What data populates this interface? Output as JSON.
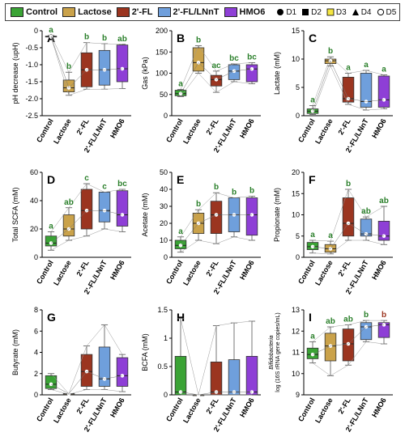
{
  "legend": {
    "groups": [
      {
        "label": "Control",
        "color": "#3aa335"
      },
      {
        "label": "Lactose",
        "color": "#caa24a"
      },
      {
        "label": "2'-FL",
        "color": "#9b3520"
      },
      {
        "label": "2'-FL/LNnT",
        "color": "#6f9fdc"
      },
      {
        "label": "HMO6",
        "color": "#8e3fd6"
      }
    ],
    "donors": [
      {
        "label": "D1",
        "marker": "circle-filled"
      },
      {
        "label": "D2",
        "marker": "square-filled"
      },
      {
        "label": "D3",
        "marker": "square-yellow"
      },
      {
        "label": "D4",
        "marker": "triangle"
      },
      {
        "label": "D5",
        "marker": "circle-open"
      }
    ]
  },
  "chart_data": [
    {
      "type": "box",
      "panel": "A",
      "title": "",
      "xlabel": "",
      "ylabel": "pH decrease (upH)",
      "ylim": [
        -2.5,
        0
      ],
      "yticks": [
        0,
        -0.5,
        -1.0,
        -1.5,
        -2.0,
        -2.5
      ],
      "categories": [
        "Control",
        "Lactose",
        "2'-FL",
        "2'-FL/LNnT",
        "HMO6"
      ],
      "boxes": [
        {
          "min": -0.18,
          "q1": -0.18,
          "median": -0.17,
          "q3": -0.16,
          "max": -0.14
        },
        {
          "min": -1.9,
          "q1": -1.8,
          "median": -1.68,
          "q3": -1.45,
          "max": -1.22
        },
        {
          "min": -1.72,
          "q1": -1.65,
          "median": -1.15,
          "q3": -0.65,
          "max": -0.35
        },
        {
          "min": -1.72,
          "q1": -1.6,
          "median": -1.15,
          "q3": -0.58,
          "max": -0.38
        },
        {
          "min": -1.7,
          "q1": -1.5,
          "median": -1.12,
          "q3": -0.42,
          "max": -0.4
        }
      ],
      "letters": [
        "a",
        "b",
        "b",
        "b",
        "ab"
      ]
    },
    {
      "type": "box",
      "panel": "B",
      "title": "",
      "xlabel": "",
      "ylabel": "Gas (kPa)",
      "ylim": [
        0,
        200
      ],
      "yticks": [
        0,
        50,
        100,
        150,
        200
      ],
      "categories": [
        "Control",
        "Lactose",
        "2'-FL",
        "2'-FL/LNnT",
        "HMO6"
      ],
      "boxes": [
        {
          "min": 45,
          "q1": 47,
          "median": 52,
          "q3": 60,
          "max": 62
        },
        {
          "min": 100,
          "q1": 105,
          "median": 125,
          "q3": 160,
          "max": 165
        },
        {
          "min": 55,
          "q1": 70,
          "median": 85,
          "q3": 95,
          "max": 105
        },
        {
          "min": 80,
          "q1": 85,
          "median": 105,
          "q3": 120,
          "max": 122
        },
        {
          "min": 75,
          "q1": 80,
          "median": 110,
          "q3": 120,
          "max": 125
        }
      ],
      "letters": [
        "a",
        "b",
        "ac",
        "bc",
        "bc"
      ]
    },
    {
      "type": "box",
      "panel": "C",
      "title": "",
      "xlabel": "",
      "ylabel": "Lactate (mM)",
      "ylim": [
        0,
        15
      ],
      "yticks": [
        0,
        5,
        10,
        15
      ],
      "categories": [
        "Control",
        "Lactose",
        "2'-FL",
        "2'-FL/LNnT",
        "HMO6"
      ],
      "boxes": [
        {
          "min": 0.2,
          "q1": 0.4,
          "median": 0.8,
          "q3": 1.2,
          "max": 1.8
        },
        {
          "min": 8.8,
          "q1": 9.2,
          "median": 9.7,
          "q3": 10.0,
          "max": 10.4
        },
        {
          "min": 2.0,
          "q1": 2.4,
          "median": 3.0,
          "q3": 6.8,
          "max": 7.5
        },
        {
          "min": 1.0,
          "q1": 1.5,
          "median": 2.5,
          "q3": 7.5,
          "max": 8.0
        },
        {
          "min": 1.2,
          "q1": 1.5,
          "median": 2.8,
          "q3": 7.0,
          "max": 7.2
        }
      ],
      "letters": [
        "a",
        "b",
        "a",
        "a",
        "a"
      ]
    },
    {
      "type": "box",
      "panel": "D",
      "title": "",
      "xlabel": "",
      "ylabel": "Total SCFA (mM)",
      "ylim": [
        0,
        60
      ],
      "yticks": [
        0,
        20,
        40,
        60
      ],
      "categories": [
        "Control",
        "Lactose",
        "2'-FL",
        "2'-FL/LNnT",
        "HMO6"
      ],
      "boxes": [
        {
          "min": 5,
          "q1": 8,
          "median": 10,
          "q3": 15,
          "max": 18
        },
        {
          "min": 12,
          "q1": 15,
          "median": 20,
          "q3": 30,
          "max": 35
        },
        {
          "min": 15,
          "q1": 20,
          "median": 33,
          "q3": 48,
          "max": 52
        },
        {
          "min": 20,
          "q1": 25,
          "median": 33,
          "q3": 46,
          "max": 46
        },
        {
          "min": 18,
          "q1": 22,
          "median": 30,
          "q3": 47,
          "max": 48
        }
      ],
      "letters": [
        "a",
        "ab",
        "c",
        "c",
        "bc"
      ]
    },
    {
      "type": "box",
      "panel": "E",
      "title": "",
      "xlabel": "",
      "ylabel": "Acetate (mM)",
      "ylim": [
        0,
        50
      ],
      "yticks": [
        0,
        10,
        20,
        30,
        40,
        50
      ],
      "categories": [
        "Control",
        "Lactose",
        "2'-FL",
        "2'-FL/LNnT",
        "HMO6"
      ],
      "boxes": [
        {
          "min": 3,
          "q1": 5,
          "median": 7,
          "q3": 10,
          "max": 12
        },
        {
          "min": 10,
          "q1": 14,
          "median": 20,
          "q3": 26,
          "max": 28
        },
        {
          "min": 8,
          "q1": 14,
          "median": 25,
          "q3": 33,
          "max": 38
        },
        {
          "min": 12,
          "q1": 15,
          "median": 25,
          "q3": 35,
          "max": 35
        },
        {
          "min": 10,
          "q1": 13,
          "median": 25,
          "q3": 35,
          "max": 36
        }
      ],
      "letters": [
        "a",
        "b",
        "b",
        "b",
        "b"
      ]
    },
    {
      "type": "box",
      "panel": "F",
      "title": "",
      "xlabel": "",
      "ylabel": "Propionate (mM)",
      "ylim": [
        0,
        20
      ],
      "yticks": [
        0,
        5,
        10,
        15,
        20
      ],
      "categories": [
        "Control",
        "Lactose",
        "2'-FL",
        "2'-FL/LNnT",
        "HMO6"
      ],
      "boxes": [
        {
          "min": 1,
          "q1": 1.8,
          "median": 2.5,
          "q3": 3.5,
          "max": 4
        },
        {
          "min": 0.8,
          "q1": 1.2,
          "median": 2.0,
          "q3": 3.0,
          "max": 3.8
        },
        {
          "min": 4,
          "q1": 5,
          "median": 8,
          "q3": 14,
          "max": 16
        },
        {
          "min": 4,
          "q1": 5,
          "median": 5.5,
          "q3": 9,
          "max": 9.5
        },
        {
          "min": 3,
          "q1": 4,
          "median": 5,
          "q3": 8.5,
          "max": 12
        }
      ],
      "letters": [
        "a",
        "a",
        "b",
        "ab",
        "ab"
      ]
    },
    {
      "type": "box",
      "panel": "G",
      "title": "",
      "xlabel": "",
      "ylabel": "Butyrate (mM)",
      "ylim": [
        0,
        8
      ],
      "yticks": [
        0,
        2,
        4,
        6,
        8
      ],
      "categories": [
        "Control",
        "Lactose",
        "2'-FL",
        "2'-FL/LNnT",
        "HMO6"
      ],
      "boxes": [
        {
          "min": 0.5,
          "q1": 0.6,
          "median": 1.0,
          "q3": 1.8,
          "max": 2.0
        },
        {
          "min": 0.05,
          "q1": 0.05,
          "median": 0.1,
          "q3": 0.1,
          "max": 0.1
        },
        {
          "min": 0.5,
          "q1": 0.8,
          "median": 2.2,
          "q3": 3.8,
          "max": 4.6
        },
        {
          "min": 0.5,
          "q1": 0.8,
          "median": 1.5,
          "q3": 4.5,
          "max": 6.6
        },
        {
          "min": 0.3,
          "q1": 0.8,
          "median": 1.8,
          "q3": 3.5,
          "max": 3.8
        }
      ],
      "letters": []
    },
    {
      "type": "box",
      "panel": "H",
      "title": "",
      "xlabel": "",
      "ylabel": "BCFA (mM)",
      "ylim": [
        0,
        1.5
      ],
      "yticks": [
        0,
        0.5,
        1.0,
        1.5
      ],
      "categories": [
        "Control",
        "Lactose",
        "2'-FL",
        "2'-FL/LNnT",
        "HMO6"
      ],
      "boxes": [
        {
          "min": 0.0,
          "q1": 0.0,
          "median": 0.05,
          "q3": 0.68,
          "max": 1.35
        },
        {
          "min": 0.0,
          "q1": 0.0,
          "median": 0.0,
          "q3": 0.0,
          "max": 0.0
        },
        {
          "min": 0.0,
          "q1": 0.0,
          "median": 0.05,
          "q3": 0.58,
          "max": 1.22
        },
        {
          "min": 0.0,
          "q1": 0.0,
          "median": 0.05,
          "q3": 0.62,
          "max": 1.27
        },
        {
          "min": 0.0,
          "q1": 0.0,
          "median": 0.05,
          "q3": 0.68,
          "max": 1.3
        }
      ],
      "letters": []
    },
    {
      "type": "box",
      "panel": "I",
      "title": "",
      "xlabel": "",
      "ylabel": "log (16S rRNA gene copies/mL)",
      "ylabel2": "Bifidobacteria",
      "ylim": [
        9,
        13
      ],
      "yticks": [
        9,
        10,
        11,
        12,
        13
      ],
      "categories": [
        "Control",
        "Lactose",
        "2'-FL",
        "2'-FL/LNnT",
        "HMO6"
      ],
      "boxes": [
        {
          "min": 10.5,
          "q1": 10.7,
          "median": 10.9,
          "q3": 11.2,
          "max": 11.5
        },
        {
          "min": 9.9,
          "q1": 10.6,
          "median": 11.3,
          "q3": 11.9,
          "max": 12.2
        },
        {
          "min": 10.4,
          "q1": 10.6,
          "median": 11.4,
          "q3": 12.1,
          "max": 12.3
        },
        {
          "min": 11.5,
          "q1": 11.6,
          "median": 12.2,
          "q3": 12.4,
          "max": 12.5
        },
        {
          "min": 11.4,
          "q1": 11.7,
          "median": 12.3,
          "q3": 12.4,
          "max": 12.5
        }
      ],
      "letters": [
        "a",
        "ab",
        "ab",
        "b",
        "b"
      ]
    }
  ]
}
